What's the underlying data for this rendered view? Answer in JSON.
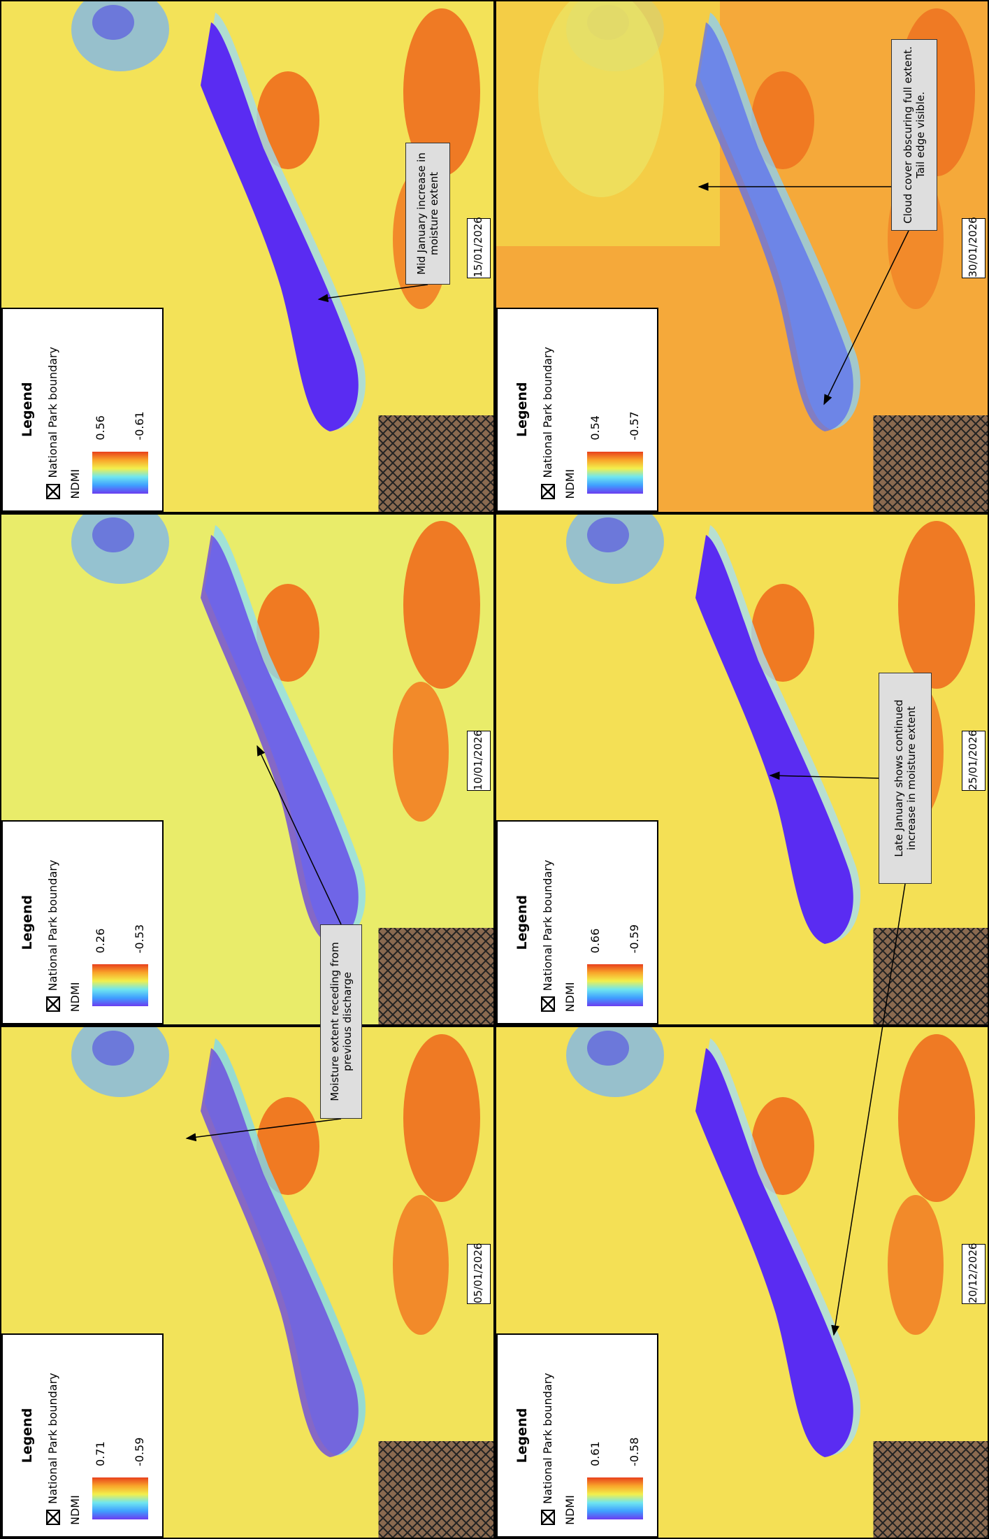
{
  "panels": [
    {
      "date": "05/01/2026",
      "legend": {
        "title": "Legend",
        "boundary": "National Park boundary",
        "index": "NDMI",
        "max": 0.71,
        "min": -0.59
      }
    },
    {
      "date": "10/01/2026",
      "legend": {
        "title": "Legend",
        "boundary": "National Park boundary",
        "index": "NDMI",
        "max": 0.26,
        "min": -0.53
      }
    },
    {
      "date": "15/01/2026",
      "legend": {
        "title": "Legend",
        "boundary": "National Park boundary",
        "index": "NDMI",
        "max": 0.56,
        "min": -0.61
      }
    },
    {
      "date": "20/12/2026",
      "legend": {
        "title": "Legend",
        "boundary": "National Park boundary",
        "index": "NDMI",
        "max": 0.61,
        "min": -0.58
      }
    },
    {
      "date": "25/01/2026",
      "legend": {
        "title": "Legend",
        "boundary": "National Park boundary",
        "index": "NDMI",
        "max": 0.66,
        "min": -0.59
      }
    },
    {
      "date": "30/01/2026",
      "legend": {
        "title": "Legend",
        "boundary": "National Park boundary",
        "index": "NDMI",
        "max": 0.54,
        "min": -0.57
      }
    }
  ],
  "annotations": [
    {
      "text": "Moisture extent receding from previous discharge"
    },
    {
      "text": "Mid January increase in moisture extent"
    },
    {
      "text": "Late January shows continued increase in moisture extent"
    },
    {
      "text": "Cloud cover obscuring full extent. Tail edge visible."
    }
  ]
}
